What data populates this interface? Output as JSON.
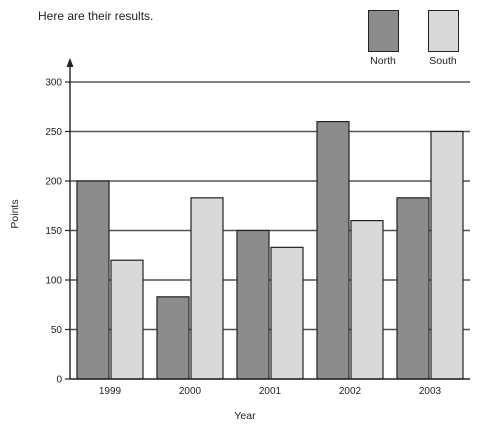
{
  "caption": "Here are their results.",
  "chart_data": {
    "type": "bar",
    "categories": [
      "1999",
      "2000",
      "2001",
      "2002",
      "2003"
    ],
    "series": [
      {
        "name": "North",
        "values": [
          200,
          83,
          150,
          260,
          183
        ],
        "color": "#8c8c8c"
      },
      {
        "name": "South",
        "values": [
          120,
          183,
          133,
          160,
          250
        ],
        "color": "#d9d9d9"
      }
    ],
    "xlabel": "Year",
    "ylabel": "Points",
    "ylim": [
      0,
      300
    ],
    "yticks": [
      0,
      50,
      100,
      150,
      200,
      250,
      300
    ],
    "grid": true,
    "legend_position": "top-right"
  }
}
